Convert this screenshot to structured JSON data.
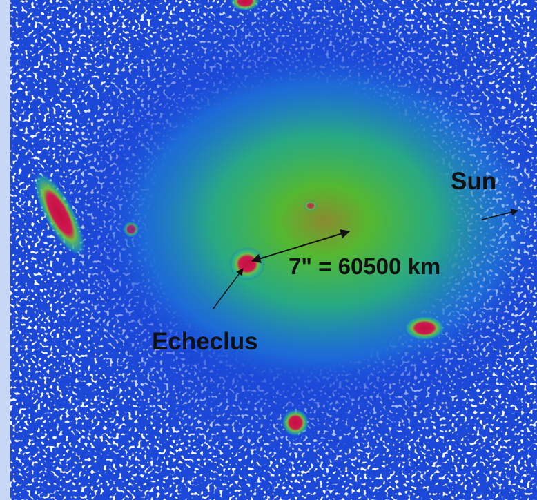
{
  "labels": {
    "sun": "Sun",
    "scale": "7\" = 60500 km",
    "object": "Echeclus"
  }
}
